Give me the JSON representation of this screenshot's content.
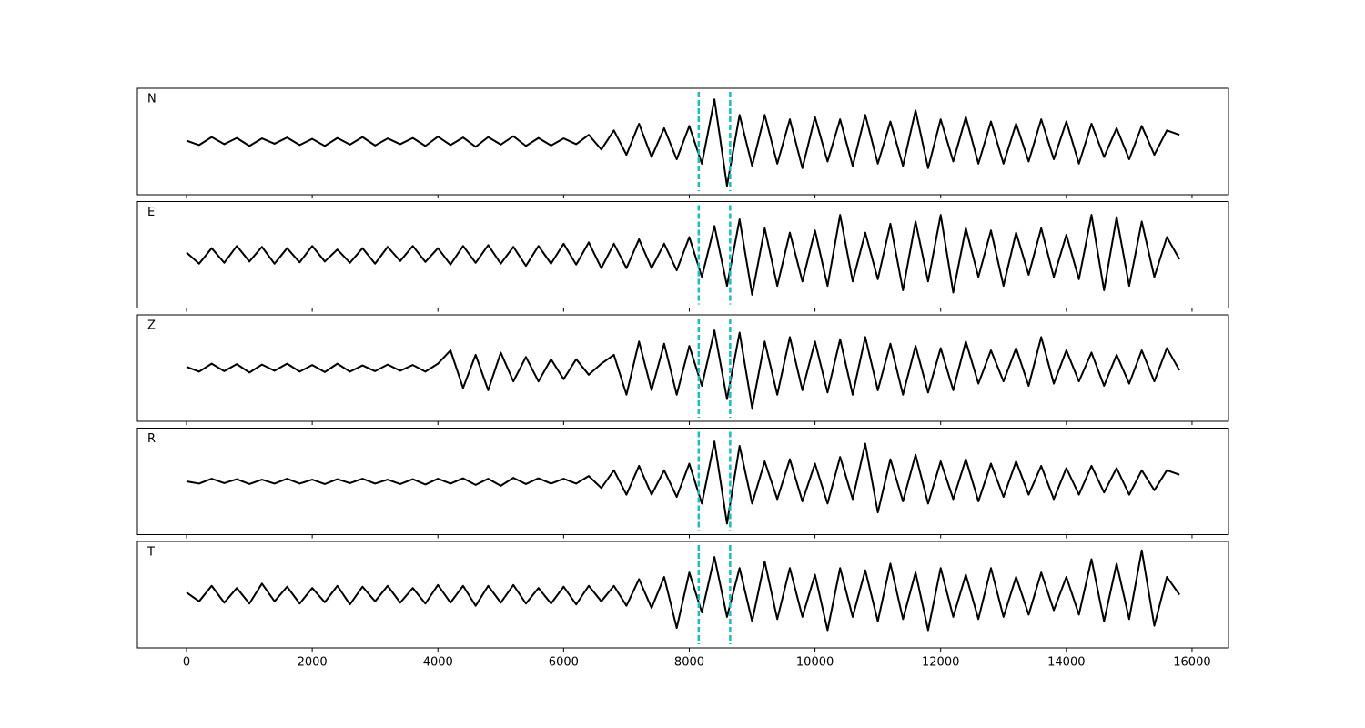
{
  "chart_data": {
    "type": "line",
    "x": [
      0,
      200,
      400,
      600,
      800,
      1000,
      1200,
      1400,
      1600,
      1800,
      2000,
      2200,
      2400,
      2600,
      2800,
      3000,
      3200,
      3400,
      3600,
      3800,
      4000,
      4200,
      4400,
      4600,
      4800,
      5000,
      5200,
      5400,
      5600,
      5800,
      6000,
      6200,
      6400,
      6600,
      6800,
      7000,
      7200,
      7400,
      7600,
      7800,
      8000,
      8200,
      8400,
      8600,
      8800,
      9000,
      9200,
      9400,
      9600,
      9800,
      10000,
      10200,
      10400,
      10600,
      10800,
      11000,
      11200,
      11400,
      11600,
      11800,
      12000,
      12200,
      12400,
      12600,
      12800,
      13000,
      13200,
      13400,
      13600,
      13800,
      14000,
      14200,
      14400,
      14600,
      14800,
      15000,
      15200,
      15400,
      15600,
      15800
    ],
    "xlim": [
      -782,
      16580
    ],
    "xticks": [
      0,
      2000,
      4000,
      6000,
      8000,
      10000,
      12000,
      14000,
      16000
    ],
    "ylim": [
      -1.2,
      1.2
    ],
    "picks": [
      8150,
      8650
    ],
    "pick_color": "#17bebb",
    "series": [
      {
        "name": "N",
        "color": "#000000",
        "values": [
          0.02,
          -0.08,
          0.1,
          -0.06,
          0.08,
          -0.1,
          0.07,
          -0.05,
          0.09,
          -0.08,
          0.06,
          -0.1,
          0.08,
          -0.07,
          0.1,
          -0.09,
          0.07,
          -0.06,
          0.08,
          -0.1,
          0.11,
          -0.08,
          0.09,
          -0.12,
          0.1,
          -0.07,
          0.12,
          -0.1,
          0.08,
          -0.09,
          0.07,
          -0.06,
          0.15,
          -0.18,
          0.25,
          -0.3,
          0.4,
          -0.35,
          0.3,
          -0.4,
          0.35,
          -0.5,
          0.95,
          -1.0,
          0.6,
          -0.55,
          0.6,
          -0.5,
          0.5,
          -0.6,
          0.55,
          -0.45,
          0.5,
          -0.55,
          0.6,
          -0.5,
          0.45,
          -0.55,
          0.7,
          -0.6,
          0.5,
          -0.45,
          0.55,
          -0.5,
          0.45,
          -0.5,
          0.4,
          -0.45,
          0.5,
          -0.4,
          0.45,
          -0.5,
          0.4,
          -0.35,
          0.3,
          -0.4,
          0.35,
          -0.3,
          0.25,
          0.15
        ]
      },
      {
        "name": "E",
        "color": "#000000",
        "values": [
          0.05,
          -0.2,
          0.15,
          -0.18,
          0.2,
          -0.15,
          0.18,
          -0.2,
          0.15,
          -0.17,
          0.2,
          -0.15,
          0.12,
          -0.18,
          0.15,
          -0.2,
          0.18,
          -0.14,
          0.2,
          -0.16,
          0.15,
          -0.22,
          0.2,
          -0.18,
          0.22,
          -0.2,
          0.18,
          -0.25,
          0.2,
          -0.2,
          0.25,
          -0.22,
          0.28,
          -0.3,
          0.25,
          -0.3,
          0.35,
          -0.3,
          0.25,
          -0.35,
          0.4,
          -0.5,
          0.65,
          -0.7,
          0.8,
          -0.9,
          0.6,
          -0.7,
          0.5,
          -0.6,
          0.55,
          -0.7,
          0.9,
          -0.6,
          0.5,
          -0.55,
          0.7,
          -0.8,
          0.75,
          -0.6,
          0.9,
          -0.85,
          0.6,
          -0.5,
          0.55,
          -0.7,
          0.5,
          -0.45,
          0.6,
          -0.5,
          0.45,
          -0.55,
          0.9,
          -0.8,
          0.85,
          -0.7,
          0.75,
          -0.5,
          0.4,
          -0.1
        ]
      },
      {
        "name": "Z",
        "color": "#000000",
        "values": [
          0.03,
          -0.08,
          0.1,
          -0.07,
          0.09,
          -0.1,
          0.08,
          -0.06,
          0.1,
          -0.08,
          0.07,
          -0.09,
          0.1,
          -0.08,
          0.06,
          -0.07,
          0.08,
          -0.06,
          0.07,
          -0.08,
          0.1,
          0.4,
          -0.45,
          0.3,
          -0.5,
          0.35,
          -0.3,
          0.25,
          -0.3,
          0.2,
          -0.25,
          0.2,
          -0.15,
          0.1,
          0.3,
          -0.6,
          0.6,
          -0.5,
          0.55,
          -0.6,
          0.5,
          -0.4,
          0.85,
          -0.7,
          0.8,
          -0.9,
          0.6,
          -0.6,
          0.7,
          -0.5,
          0.6,
          -0.55,
          0.65,
          -0.6,
          0.7,
          -0.5,
          0.55,
          -0.6,
          0.5,
          -0.55,
          0.45,
          -0.5,
          0.6,
          -0.35,
          0.4,
          -0.3,
          0.45,
          -0.4,
          0.7,
          -0.35,
          0.4,
          -0.3,
          0.35,
          -0.4,
          0.3,
          -0.35,
          0.4,
          -0.3,
          0.45,
          -0.05
        ]
      },
      {
        "name": "R",
        "color": "#000000",
        "values": [
          0.0,
          -0.05,
          0.06,
          -0.04,
          0.05,
          -0.06,
          0.04,
          -0.05,
          0.06,
          -0.05,
          0.04,
          -0.06,
          0.05,
          -0.04,
          0.06,
          -0.05,
          0.04,
          -0.06,
          0.05,
          -0.07,
          0.06,
          -0.05,
          0.07,
          -0.08,
          0.06,
          -0.1,
          0.08,
          -0.06,
          0.07,
          -0.05,
          0.06,
          -0.05,
          0.12,
          -0.15,
          0.25,
          -0.3,
          0.35,
          -0.3,
          0.25,
          -0.35,
          0.4,
          -0.5,
          0.9,
          -0.95,
          0.8,
          -0.5,
          0.45,
          -0.4,
          0.5,
          -0.45,
          0.4,
          -0.5,
          0.55,
          -0.4,
          0.85,
          -0.7,
          0.5,
          -0.45,
          0.6,
          -0.5,
          0.45,
          -0.4,
          0.5,
          -0.45,
          0.4,
          -0.35,
          0.45,
          -0.3,
          0.35,
          -0.4,
          0.3,
          -0.3,
          0.35,
          -0.25,
          0.3,
          -0.3,
          0.25,
          -0.2,
          0.25,
          0.15
        ]
      },
      {
        "name": "T",
        "color": "#000000",
        "values": [
          0.05,
          -0.15,
          0.2,
          -0.18,
          0.15,
          -0.2,
          0.25,
          -0.15,
          0.18,
          -0.2,
          0.15,
          -0.17,
          0.2,
          -0.22,
          0.18,
          -0.15,
          0.2,
          -0.18,
          0.15,
          -0.2,
          0.22,
          -0.18,
          0.2,
          -0.25,
          0.2,
          -0.18,
          0.22,
          -0.2,
          0.15,
          -0.2,
          0.18,
          -0.22,
          0.2,
          -0.15,
          0.2,
          -0.25,
          0.35,
          -0.3,
          0.4,
          -0.75,
          0.5,
          -0.4,
          0.85,
          -0.5,
          0.6,
          -0.6,
          0.75,
          -0.55,
          0.6,
          -0.5,
          0.45,
          -0.8,
          0.6,
          -0.5,
          0.55,
          -0.6,
          0.7,
          -0.55,
          0.5,
          -0.8,
          0.6,
          -0.5,
          0.45,
          -0.55,
          0.6,
          -0.5,
          0.4,
          -0.45,
          0.5,
          -0.35,
          0.4,
          -0.45,
          0.8,
          -0.6,
          0.7,
          -0.55,
          1.0,
          -0.7,
          0.4,
          0.0
        ]
      }
    ]
  }
}
